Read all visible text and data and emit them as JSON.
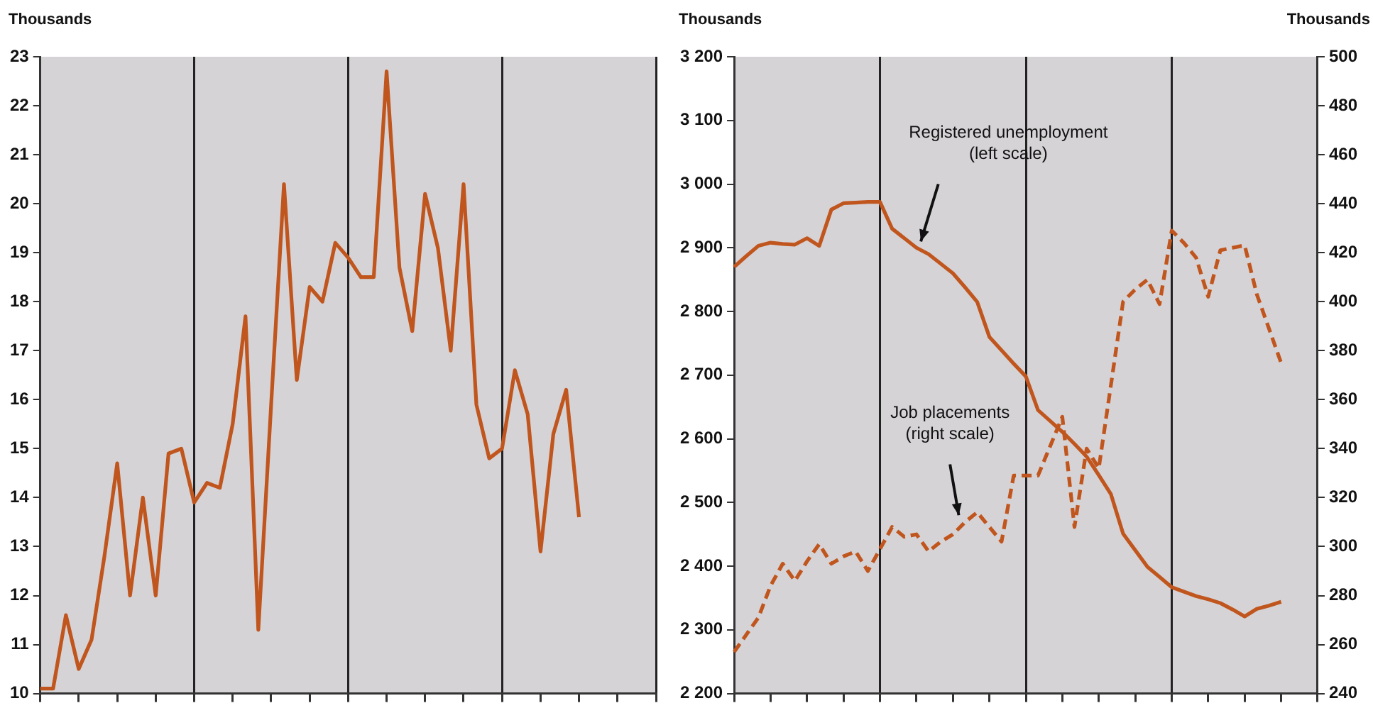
{
  "chart_data": [
    {
      "type": "line",
      "ylabel": "Thousands",
      "ylim": [
        10,
        23
      ],
      "yticks": [
        10,
        11,
        12,
        13,
        14,
        15,
        16,
        17,
        18,
        19,
        20,
        21,
        22,
        23
      ],
      "categories": [
        null,
        null,
        null,
        null,
        null,
        null,
        null,
        null,
        null,
        null,
        null,
        null,
        null,
        null,
        null,
        null,
        null,
        null,
        null,
        null,
        null,
        null,
        null,
        null,
        null,
        null,
        null,
        null,
        null,
        null,
        null,
        null,
        null,
        null,
        null,
        null,
        null,
        null,
        null,
        null,
        null,
        null,
        null,
        null,
        null,
        null,
        null,
        null,
        null
      ],
      "tick_labels": "y",
      "grid": "x",
      "legend": false,
      "marker": "none",
      "series": [
        {
          "color": "#c0561e",
          "line_style": "solid",
          "values": [
            10.1,
            10.1,
            11.6,
            10.5,
            11.1,
            12.8,
            14.7,
            12.0,
            14.0,
            12.0,
            14.9,
            15.0,
            13.9,
            14.3,
            14.2,
            15.5,
            17.7,
            11.3,
            15.9,
            20.4,
            16.4,
            18.3,
            18.0,
            19.2,
            18.9,
            18.5,
            18.5,
            22.7,
            18.7,
            17.4,
            20.2,
            19.1,
            17.0,
            20.4,
            15.9,
            14.8,
            15.0,
            16.6,
            15.7,
            12.9,
            15.3,
            16.2,
            13.6,
            null,
            null,
            null,
            null,
            null,
            null
          ]
        }
      ]
    },
    {
      "type": "line",
      "ylabel": "Thousands",
      "y2label": "Thousands",
      "ylim": [
        2200,
        3200
      ],
      "y2lim": [
        240,
        500
      ],
      "yticks": [
        {
          "value": 2200,
          "label": "2 200"
        },
        {
          "value": 2300,
          "label": "2 300"
        },
        {
          "value": 2400,
          "label": "2 400"
        },
        {
          "value": 2500,
          "label": "2 500"
        },
        {
          "value": 2600,
          "label": "2 600"
        },
        {
          "value": 2700,
          "label": "2 700"
        },
        {
          "value": 2800,
          "label": "2 800"
        },
        {
          "value": 2900,
          "label": "2 900"
        },
        {
          "value": 3000,
          "label": "3 000"
        },
        {
          "value": 3100,
          "label": "3 100"
        },
        {
          "value": 3200,
          "label": "3 200"
        }
      ],
      "y2ticks": [
        240,
        260,
        280,
        300,
        320,
        340,
        360,
        380,
        400,
        420,
        440,
        460,
        480,
        500
      ],
      "categories": [
        null,
        null,
        null,
        null,
        null,
        null,
        null,
        null,
        null,
        null,
        null,
        null,
        null,
        null,
        null,
        null,
        null,
        null,
        null,
        null,
        null,
        null,
        null,
        null,
        null,
        null,
        null,
        null,
        null,
        null,
        null,
        null,
        null,
        null,
        null,
        null,
        null,
        null,
        null,
        null,
        null,
        null,
        null,
        null,
        null,
        null,
        null,
        null,
        null
      ],
      "tick_labels": "y",
      "grid": "x",
      "legend": false,
      "marker": "none",
      "annotations": [
        "Registered unemployment\n(left scale)",
        "Job placements\n(right scale)"
      ],
      "series": [
        {
          "color": "#c0561e",
          "line_style": "solid",
          "values": [
            2870,
            2887,
            2903,
            2908,
            2906,
            2905,
            2915,
            2903,
            2960,
            2970,
            2971,
            2972,
            2972,
            2930,
            2915,
            2900,
            2890,
            2875,
            2860,
            2838,
            2815,
            2760,
            2739,
            2718,
            2698,
            2645,
            2628,
            2611,
            2592,
            2572,
            2543,
            2513,
            2451,
            2425,
            2399,
            2383,
            2367,
            2360,
            2353,
            2348,
            2342,
            2332,
            2321,
            2333,
            2338,
            2344,
            null,
            null,
            null
          ]
        },
        {
          "color": "#c0561e",
          "line_style": "dashed",
          "axis": "y2",
          "values": [
            257,
            264,
            271,
            284,
            293,
            286,
            294,
            301,
            293,
            296,
            298,
            290,
            299,
            308,
            304,
            305,
            298,
            302,
            305,
            310,
            314,
            308,
            302,
            329,
            329,
            329,
            341,
            353,
            308,
            340,
            332,
            366,
            400,
            405,
            409,
            399,
            429,
            424,
            418,
            402,
            421,
            422,
            423,
            403,
            389,
            375,
            null,
            null,
            null
          ]
        }
      ]
    }
  ]
}
